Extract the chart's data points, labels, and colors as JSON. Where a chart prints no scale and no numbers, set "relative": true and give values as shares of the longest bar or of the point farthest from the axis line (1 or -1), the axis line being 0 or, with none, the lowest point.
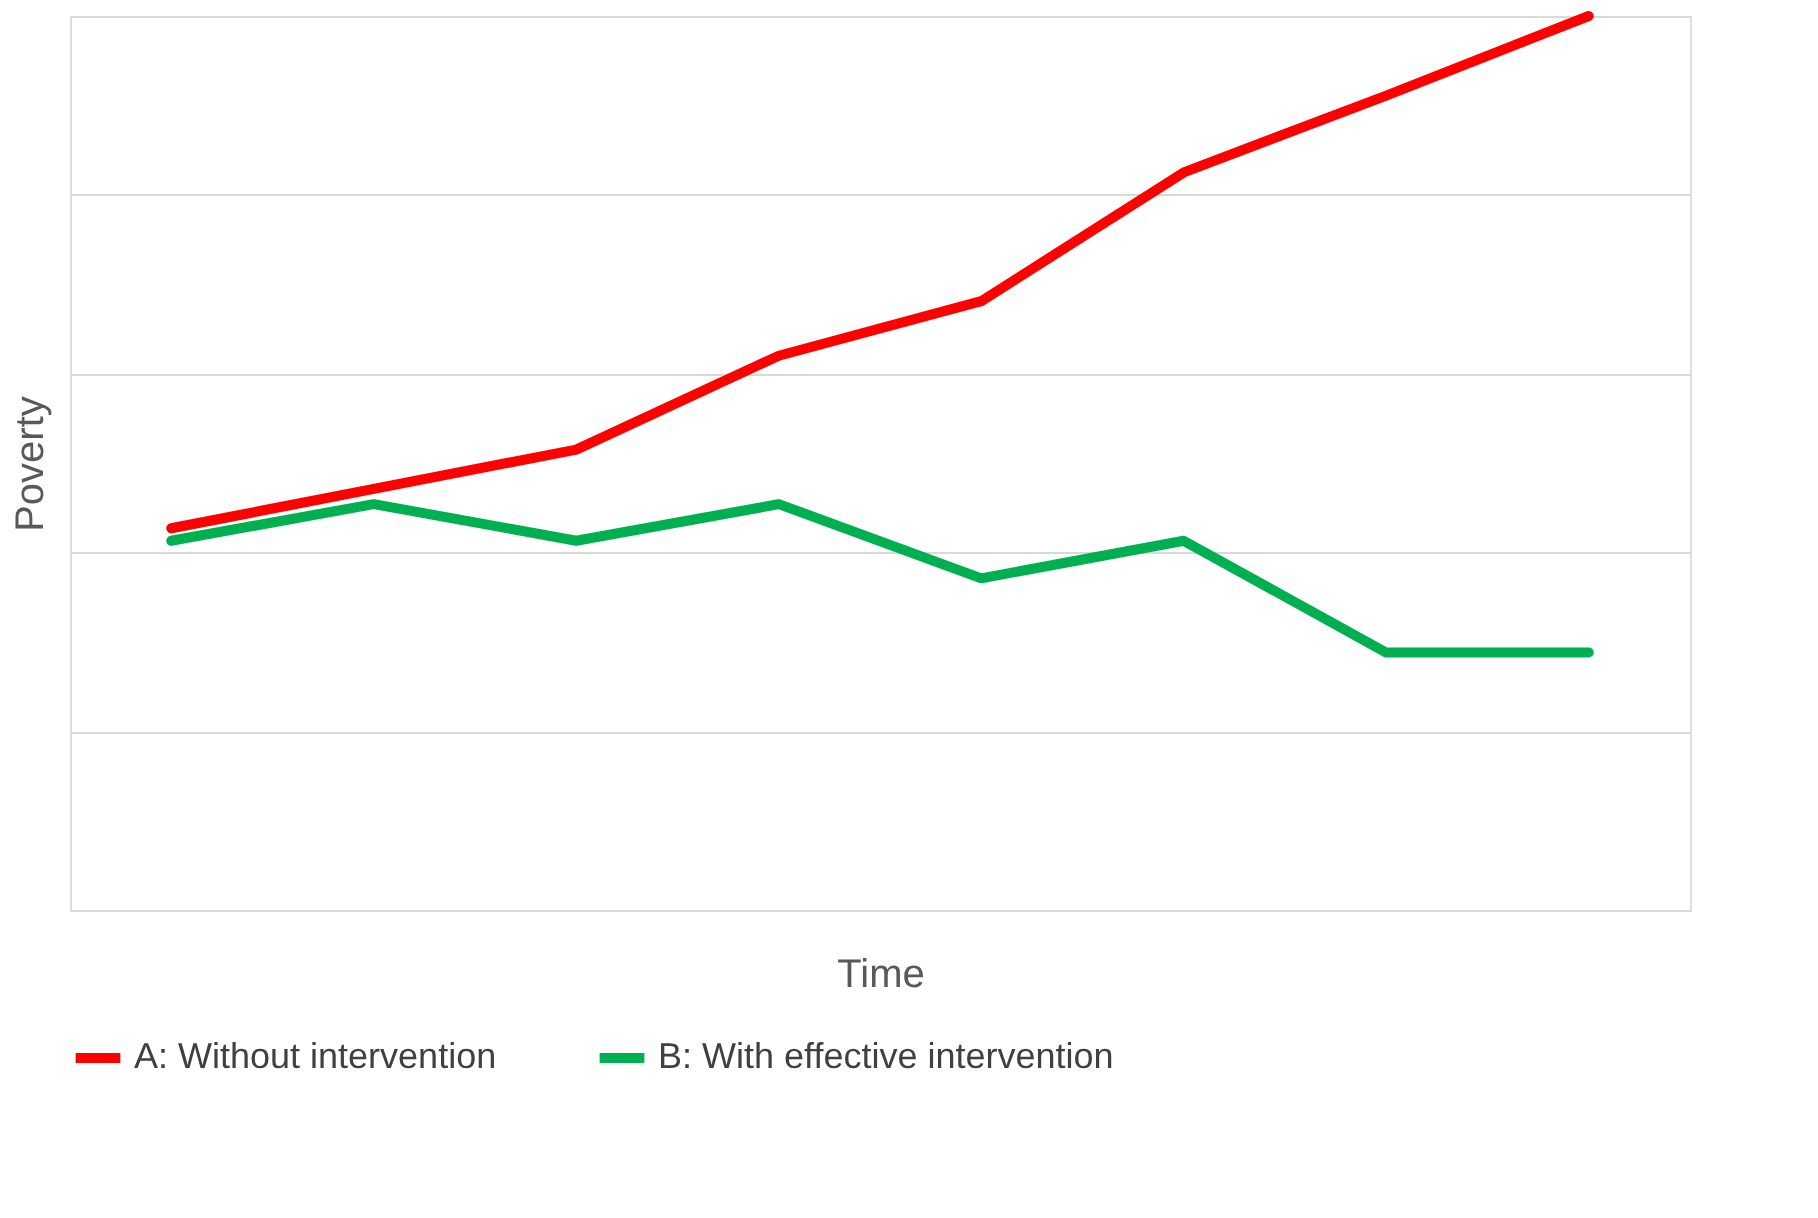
{
  "chart_data": {
    "type": "line",
    "xlabel": "Time",
    "ylabel": "Poverty",
    "relative": true,
    "grid": "y",
    "legend": "bottom",
    "categories": [
      null,
      null,
      null,
      null,
      null,
      null,
      null,
      null
    ],
    "series": [
      {
        "name": "A: Without intervention",
        "color": "#ff0000",
        "values": [
          0.427,
          0.471,
          0.515,
          0.62,
          0.681,
          0.825,
          0.911,
          1
        ]
      },
      {
        "name": "B: With effective intervention",
        "color": "#00b050",
        "values": [
          0.413,
          0.454,
          0.413,
          0.454,
          0.371,
          0.413,
          0.288,
          0.288
        ]
      }
    ]
  }
}
